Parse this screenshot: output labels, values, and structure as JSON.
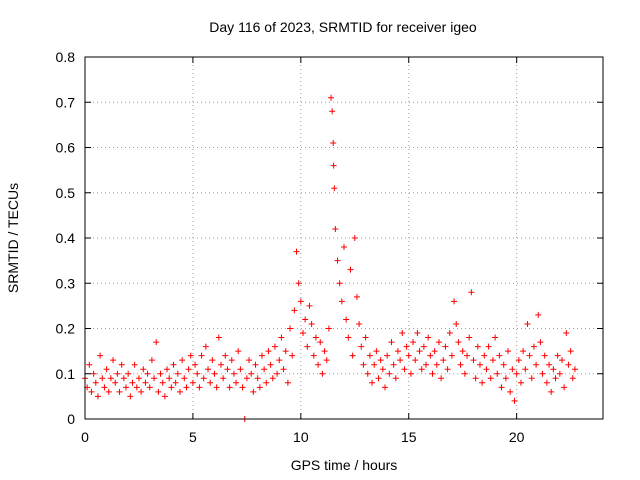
{
  "chart_data": {
    "type": "scatter",
    "title": "Day 116 of 2023, SRMTID for receiver igeo",
    "xlabel": "GPS time / hours",
    "ylabel": "SRMTID / TECUs",
    "xlim": [
      0,
      24
    ],
    "ylim": [
      0,
      0.8
    ],
    "xticks": [
      "0",
      "5",
      "10",
      "15",
      "20"
    ],
    "yticks": [
      "0",
      "0.1",
      "0.2",
      "0.3",
      "0.4",
      "0.5",
      "0.6",
      "0.7",
      "0.8"
    ],
    "grid": true,
    "marker": "+",
    "series": [
      {
        "name": "SRMTID",
        "color": "#ff0000",
        "points": [
          [
            0.0,
            0.09
          ],
          [
            0.1,
            0.07
          ],
          [
            0.2,
            0.12
          ],
          [
            0.3,
            0.06
          ],
          [
            0.4,
            0.1
          ],
          [
            0.5,
            0.08
          ],
          [
            0.6,
            0.05
          ],
          [
            0.7,
            0.14
          ],
          [
            0.8,
            0.09
          ],
          [
            0.9,
            0.07
          ],
          [
            1.0,
            0.11
          ],
          [
            1.1,
            0.06
          ],
          [
            1.2,
            0.09
          ],
          [
            1.3,
            0.13
          ],
          [
            1.4,
            0.08
          ],
          [
            1.5,
            0.1
          ],
          [
            1.6,
            0.06
          ],
          [
            1.7,
            0.12
          ],
          [
            1.8,
            0.09
          ],
          [
            1.9,
            0.07
          ],
          [
            2.0,
            0.1
          ],
          [
            2.1,
            0.05
          ],
          [
            2.2,
            0.08
          ],
          [
            2.3,
            0.12
          ],
          [
            2.4,
            0.07
          ],
          [
            2.5,
            0.09
          ],
          [
            2.6,
            0.06
          ],
          [
            2.7,
            0.11
          ],
          [
            2.8,
            0.08
          ],
          [
            2.9,
            0.1
          ],
          [
            3.0,
            0.07
          ],
          [
            3.1,
            0.13
          ],
          [
            3.2,
            0.09
          ],
          [
            3.3,
            0.17
          ],
          [
            3.4,
            0.06
          ],
          [
            3.5,
            0.1
          ],
          [
            3.6,
            0.08
          ],
          [
            3.7,
            0.05
          ],
          [
            3.8,
            0.11
          ],
          [
            3.9,
            0.09
          ],
          [
            4.0,
            0.07
          ],
          [
            4.1,
            0.12
          ],
          [
            4.2,
            0.08
          ],
          [
            4.3,
            0.1
          ],
          [
            4.4,
            0.06
          ],
          [
            4.5,
            0.13
          ],
          [
            4.6,
            0.09
          ],
          [
            4.7,
            0.07
          ],
          [
            4.8,
            0.11
          ],
          [
            4.9,
            0.14
          ],
          [
            5.0,
            0.08
          ],
          [
            5.1,
            0.12
          ],
          [
            5.2,
            0.1
          ],
          [
            5.3,
            0.07
          ],
          [
            5.4,
            0.14
          ],
          [
            5.5,
            0.09
          ],
          [
            5.6,
            0.16
          ],
          [
            5.7,
            0.11
          ],
          [
            5.8,
            0.08
          ],
          [
            5.9,
            0.13
          ],
          [
            6.0,
            0.1
          ],
          [
            6.1,
            0.07
          ],
          [
            6.2,
            0.18
          ],
          [
            6.3,
            0.12
          ],
          [
            6.4,
            0.09
          ],
          [
            6.5,
            0.14
          ],
          [
            6.6,
            0.11
          ],
          [
            6.7,
            0.07
          ],
          [
            6.8,
            0.13
          ],
          [
            6.9,
            0.1
          ],
          [
            7.0,
            0.08
          ],
          [
            7.1,
            0.15
          ],
          [
            7.2,
            0.11
          ],
          [
            7.3,
            0.07
          ],
          [
            7.4,
            0.0
          ],
          [
            7.5,
            0.09
          ],
          [
            7.6,
            0.13
          ],
          [
            7.7,
            0.1
          ],
          [
            7.8,
            0.06
          ],
          [
            7.9,
            0.12
          ],
          [
            8.0,
            0.09
          ],
          [
            8.1,
            0.07
          ],
          [
            8.2,
            0.14
          ],
          [
            8.3,
            0.11
          ],
          [
            8.4,
            0.08
          ],
          [
            8.5,
            0.15
          ],
          [
            8.6,
            0.12
          ],
          [
            8.7,
            0.09
          ],
          [
            8.8,
            0.16
          ],
          [
            8.9,
            0.1
          ],
          [
            9.0,
            0.13
          ],
          [
            9.1,
            0.18
          ],
          [
            9.2,
            0.11
          ],
          [
            9.3,
            0.15
          ],
          [
            9.4,
            0.08
          ],
          [
            9.5,
            0.2
          ],
          [
            9.6,
            0.14
          ],
          [
            9.7,
            0.24
          ],
          [
            9.8,
            0.37
          ],
          [
            9.9,
            0.3
          ],
          [
            10.0,
            0.26
          ],
          [
            10.1,
            0.19
          ],
          [
            10.2,
            0.22
          ],
          [
            10.3,
            0.16
          ],
          [
            10.4,
            0.25
          ],
          [
            10.5,
            0.21
          ],
          [
            10.6,
            0.14
          ],
          [
            10.7,
            0.18
          ],
          [
            10.8,
            0.12
          ],
          [
            10.9,
            0.17
          ],
          [
            11.0,
            0.1
          ],
          [
            11.1,
            0.15
          ],
          [
            11.2,
            0.13
          ],
          [
            11.3,
            0.2
          ],
          [
            11.4,
            0.71
          ],
          [
            11.45,
            0.68
          ],
          [
            11.5,
            0.61
          ],
          [
            11.52,
            0.56
          ],
          [
            11.55,
            0.51
          ],
          [
            11.6,
            0.42
          ],
          [
            11.7,
            0.35
          ],
          [
            11.8,
            0.3
          ],
          [
            11.9,
            0.26
          ],
          [
            12.0,
            0.38
          ],
          [
            12.1,
            0.22
          ],
          [
            12.2,
            0.18
          ],
          [
            12.3,
            0.33
          ],
          [
            12.4,
            0.14
          ],
          [
            12.5,
            0.4
          ],
          [
            12.6,
            0.27
          ],
          [
            12.7,
            0.21
          ],
          [
            12.8,
            0.16
          ],
          [
            12.9,
            0.12
          ],
          [
            13.0,
            0.18
          ],
          [
            13.1,
            0.1
          ],
          [
            13.2,
            0.14
          ],
          [
            13.3,
            0.08
          ],
          [
            13.4,
            0.12
          ],
          [
            13.5,
            0.15
          ],
          [
            13.6,
            0.09
          ],
          [
            13.7,
            0.13
          ],
          [
            13.8,
            0.11
          ],
          [
            13.9,
            0.07
          ],
          [
            14.0,
            0.14
          ],
          [
            14.1,
            0.1
          ],
          [
            14.2,
            0.17
          ],
          [
            14.3,
            0.12
          ],
          [
            14.4,
            0.09
          ],
          [
            14.5,
            0.15
          ],
          [
            14.6,
            0.13
          ],
          [
            14.7,
            0.19
          ],
          [
            14.8,
            0.11
          ],
          [
            14.9,
            0.16
          ],
          [
            15.0,
            0.14
          ],
          [
            15.1,
            0.1
          ],
          [
            15.2,
            0.17
          ],
          [
            15.3,
            0.13
          ],
          [
            15.4,
            0.19
          ],
          [
            15.5,
            0.15
          ],
          [
            15.6,
            0.11
          ],
          [
            15.7,
            0.16
          ],
          [
            15.8,
            0.12
          ],
          [
            15.9,
            0.18
          ],
          [
            16.0,
            0.14
          ],
          [
            16.1,
            0.1
          ],
          [
            16.2,
            0.15
          ],
          [
            16.3,
            0.12
          ],
          [
            16.4,
            0.17
          ],
          [
            16.5,
            0.09
          ],
          [
            16.6,
            0.13
          ],
          [
            16.7,
            0.16
          ],
          [
            16.8,
            0.11
          ],
          [
            16.9,
            0.19
          ],
          [
            17.0,
            0.14
          ],
          [
            17.1,
            0.26
          ],
          [
            17.2,
            0.21
          ],
          [
            17.3,
            0.17
          ],
          [
            17.4,
            0.12
          ],
          [
            17.5,
            0.15
          ],
          [
            17.6,
            0.1
          ],
          [
            17.7,
            0.14
          ],
          [
            17.8,
            0.18
          ],
          [
            17.9,
            0.28
          ],
          [
            18.0,
            0.13
          ],
          [
            18.1,
            0.09
          ],
          [
            18.2,
            0.16
          ],
          [
            18.3,
            0.12
          ],
          [
            18.4,
            0.08
          ],
          [
            18.5,
            0.14
          ],
          [
            18.6,
            0.11
          ],
          [
            18.7,
            0.16
          ],
          [
            18.8,
            0.09
          ],
          [
            18.9,
            0.13
          ],
          [
            19.0,
            0.18
          ],
          [
            19.1,
            0.1
          ],
          [
            19.2,
            0.14
          ],
          [
            19.3,
            0.07
          ],
          [
            19.4,
            0.12
          ],
          [
            19.5,
            0.09
          ],
          [
            19.6,
            0.15
          ],
          [
            19.7,
            0.06
          ],
          [
            19.8,
            0.11
          ],
          [
            19.9,
            0.04
          ],
          [
            20.0,
            0.1
          ],
          [
            20.1,
            0.13
          ],
          [
            20.2,
            0.08
          ],
          [
            20.3,
            0.15
          ],
          [
            20.4,
            0.11
          ],
          [
            20.5,
            0.21
          ],
          [
            20.6,
            0.14
          ],
          [
            20.7,
            0.09
          ],
          [
            20.8,
            0.16
          ],
          [
            20.9,
            0.12
          ],
          [
            21.0,
            0.23
          ],
          [
            21.1,
            0.17
          ],
          [
            21.2,
            0.1
          ],
          [
            21.3,
            0.14
          ],
          [
            21.4,
            0.08
          ],
          [
            21.5,
            0.12
          ],
          [
            21.6,
            0.06
          ],
          [
            21.7,
            0.11
          ],
          [
            21.8,
            0.09
          ],
          [
            21.9,
            0.14
          ],
          [
            22.0,
            0.1
          ],
          [
            22.1,
            0.13
          ],
          [
            22.2,
            0.07
          ],
          [
            22.3,
            0.19
          ],
          [
            22.4,
            0.12
          ],
          [
            22.5,
            0.15
          ],
          [
            22.6,
            0.09
          ],
          [
            22.7,
            0.11
          ]
        ]
      }
    ]
  }
}
